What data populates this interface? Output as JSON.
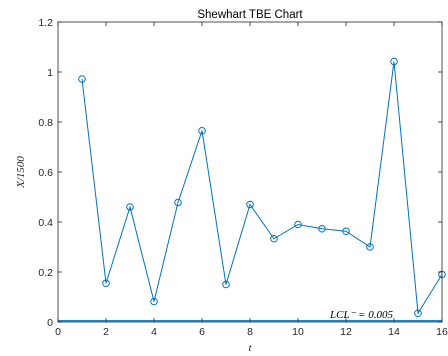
{
  "chart_data": {
    "type": "line",
    "title": "Shewhart TBE Chart",
    "xlabel": "t",
    "ylabel": "X/1500",
    "xlim": [
      0,
      16
    ],
    "ylim": [
      0,
      1.2
    ],
    "x_ticks": [
      "0",
      "2",
      "4",
      "6",
      "8",
      "10",
      "12",
      "14",
      "16"
    ],
    "y_ticks": [
      "0",
      "0.2",
      "0.4",
      "0.6",
      "0.8",
      "1",
      "1.2"
    ],
    "grid": false,
    "series": [
      {
        "color": "#0072bd",
        "marker": "circle",
        "x": [
          1,
          2,
          3,
          4,
          5,
          6,
          7,
          8,
          9,
          10,
          11,
          12,
          13,
          14,
          15,
          16
        ],
        "values": [
          0.972,
          0.155,
          0.46,
          0.082,
          0.478,
          0.765,
          0.15,
          0.47,
          0.333,
          0.39,
          0.373,
          0.363,
          0.3,
          1.042,
          0.035,
          0.19
        ]
      }
    ],
    "control_limit": {
      "label": "LCL⁻ = 0.005",
      "value": 0.005,
      "color": "#0072bd"
    }
  }
}
